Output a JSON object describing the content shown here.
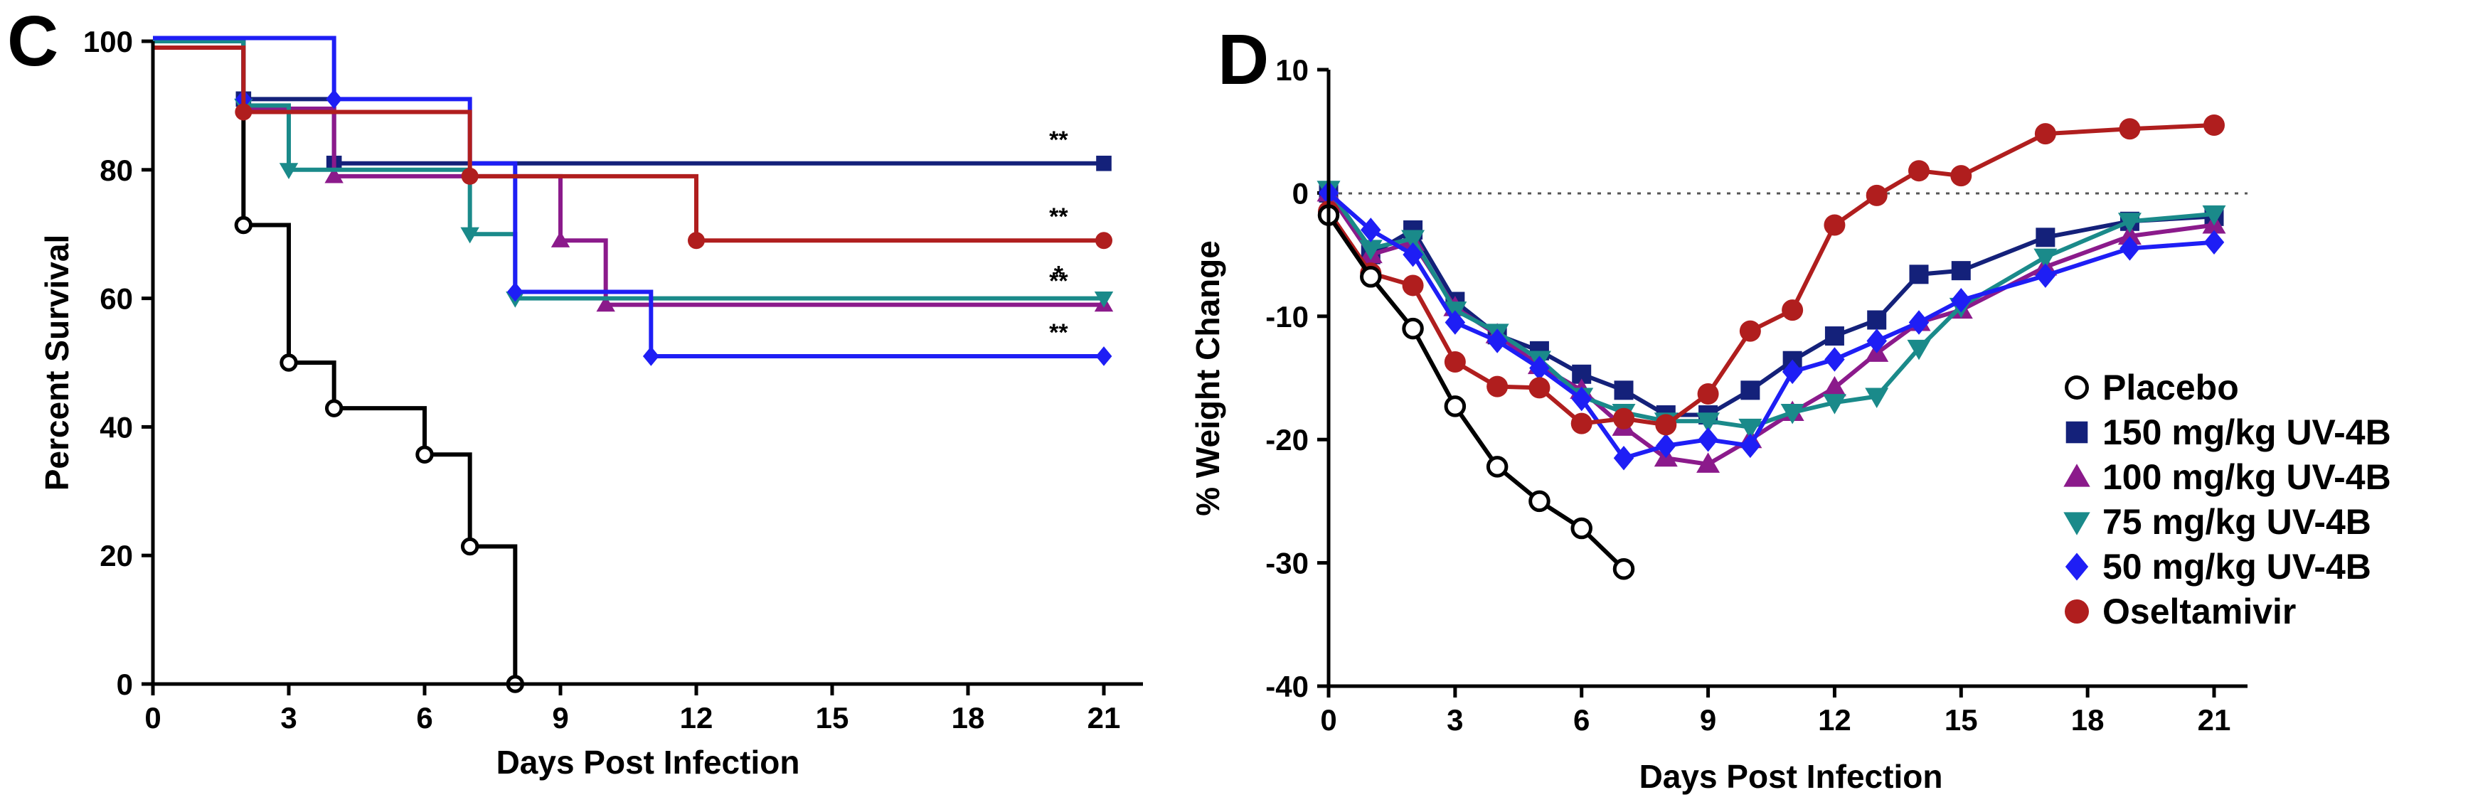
{
  "chart_data": [
    {
      "type": "line",
      "style": "step",
      "panel_label": "C",
      "xlabel": "Days Post Infection",
      "ylabel": "Percent Survival",
      "xlim": [
        0,
        22
      ],
      "ylim": [
        0,
        100
      ],
      "xticks": [
        0,
        3,
        6,
        9,
        12,
        15,
        18,
        21
      ],
      "yticks": [
        0,
        20,
        40,
        60,
        80,
        100
      ],
      "series": [
        {
          "name": "Placebo",
          "color": "#000000",
          "marker": "open-circle",
          "steps": [
            [
              0,
              100
            ],
            [
              2,
              71.4
            ],
            [
              3,
              50
            ],
            [
              4,
              42.9
            ],
            [
              6,
              35.7
            ],
            [
              7,
              21.4
            ],
            [
              8,
              0
            ]
          ],
          "points": [
            [
              2,
              71.4
            ],
            [
              3,
              50
            ],
            [
              4,
              42.9
            ],
            [
              6,
              35.7
            ],
            [
              7,
              21.4
            ],
            [
              8,
              0
            ]
          ]
        },
        {
          "name": "150 mg/kg UV-4B",
          "color": "#14217a",
          "marker": "square",
          "steps": [
            [
              0,
              100
            ],
            [
              2,
              91
            ],
            [
              4,
              81
            ],
            [
              21,
              81
            ]
          ],
          "points": [
            [
              2,
              91
            ],
            [
              4,
              81
            ],
            [
              21,
              81
            ]
          ],
          "significance": "**"
        },
        {
          "name": "100 mg/kg UV-4B",
          "color": "#8b1a8b",
          "marker": "triangle-up",
          "steps": [
            [
              0,
              100
            ],
            [
              2,
              89.5
            ],
            [
              4,
              79
            ],
            [
              9,
              69
            ],
            [
              10,
              59
            ],
            [
              21,
              59
            ]
          ],
          "points": [
            [
              4,
              79
            ],
            [
              9,
              69
            ],
            [
              10,
              59
            ],
            [
              21,
              59
            ]
          ],
          "significance": "**"
        },
        {
          "name": "75 mg/kg  UV-4B",
          "color": "#1a8a8a",
          "marker": "triangle-down",
          "steps": [
            [
              0,
              100
            ],
            [
              2,
              90
            ],
            [
              3,
              80
            ],
            [
              7,
              70
            ],
            [
              8,
              60
            ],
            [
              21,
              60
            ]
          ],
          "points": [
            [
              2,
              90
            ],
            [
              3,
              80
            ],
            [
              7,
              70
            ],
            [
              8,
              60
            ],
            [
              21,
              60
            ]
          ],
          "significance": "*"
        },
        {
          "name": "50 mg/kg  UV-4B",
          "color": "#1e1ef5",
          "marker": "diamond",
          "steps": [
            [
              0,
              100.5
            ],
            [
              4,
              91
            ],
            [
              7,
              81
            ],
            [
              8,
              61
            ],
            [
              11,
              51
            ],
            [
              21,
              51
            ]
          ],
          "points": [
            [
              2,
              91
            ],
            [
              4,
              91
            ],
            [
              8,
              61
            ],
            [
              11,
              51
            ],
            [
              21,
              51
            ]
          ],
          "significance": "**"
        },
        {
          "name": "Oseltamivir",
          "color": "#b01e1e",
          "marker": "circle",
          "steps": [
            [
              0,
              99
            ],
            [
              2,
              89
            ],
            [
              7,
              79
            ],
            [
              12,
              69
            ],
            [
              21,
              69
            ]
          ],
          "points": [
            [
              2,
              89
            ],
            [
              7,
              79
            ],
            [
              12,
              69
            ],
            [
              21,
              69
            ]
          ],
          "significance": "**"
        }
      ]
    },
    {
      "type": "line",
      "panel_label": "D",
      "xlabel": "Days Post Infection",
      "ylabel": "% Weight Change",
      "xlim": [
        0,
        22
      ],
      "ylim": [
        -40,
        10
      ],
      "xticks": [
        0,
        3,
        6,
        9,
        12,
        15,
        18,
        21
      ],
      "yticks": [
        -40,
        -30,
        -20,
        -10,
        0,
        10
      ],
      "reference_line": 0,
      "legend": "bottom-right",
      "series": [
        {
          "name": "Placebo",
          "color": "#000000",
          "marker": "open-circle",
          "x": [
            0,
            1,
            2,
            3,
            4,
            5,
            6,
            7
          ],
          "y": [
            -1.8,
            -6.8,
            -11,
            -17.3,
            -22.2,
            -25,
            -27.2,
            -30.5
          ]
        },
        {
          "name": "150 mg/kg UV-4B",
          "color": "#14217a",
          "marker": "square",
          "x": [
            0,
            1,
            2,
            3,
            4,
            5,
            6,
            7,
            8,
            9,
            10,
            11,
            12,
            13,
            14,
            15,
            17,
            19,
            21
          ],
          "y": [
            0,
            -5,
            -3,
            -8.8,
            -11.5,
            -12.8,
            -14.7,
            -16,
            -18,
            -18,
            -16,
            -13.6,
            -11.6,
            -10.3,
            -6.6,
            -6.3,
            -3.6,
            -2.3,
            -1.9
          ]
        },
        {
          "name": "100 mg/kg UV-4B",
          "color": "#8b1a8b",
          "marker": "triangle-up",
          "x": [
            0,
            1,
            2,
            3,
            4,
            5,
            6,
            7,
            8,
            9,
            10,
            11,
            12,
            13,
            14,
            15,
            17,
            19,
            21
          ],
          "y": [
            0,
            -5,
            -4,
            -9.3,
            -11.5,
            -14,
            -16,
            -19,
            -21.5,
            -22,
            -20,
            -17.8,
            -15.8,
            -13,
            -10.5,
            -9.5,
            -6,
            -3.5,
            -2.6
          ]
        },
        {
          "name": "75 mg/kg  UV-4B",
          "color": "#1a8a8a",
          "marker": "triangle-down",
          "x": [
            0,
            1,
            2,
            3,
            4,
            5,
            6,
            7,
            8,
            9,
            10,
            11,
            12,
            13,
            14,
            15,
            17,
            19,
            21
          ],
          "y": [
            0.3,
            -4.5,
            -3.7,
            -9.5,
            -11.3,
            -13.5,
            -16.5,
            -17.8,
            -18.5,
            -18.5,
            -19,
            -17.8,
            -17,
            -16.5,
            -12.6,
            -9.2,
            -5.2,
            -2.3,
            -1.7
          ]
        },
        {
          "name": "50 mg/kg  UV-4B",
          "color": "#1e1ef5",
          "marker": "diamond",
          "x": [
            0,
            1,
            2,
            3,
            4,
            5,
            6,
            7,
            8,
            9,
            10,
            11,
            12,
            13,
            14,
            15,
            17,
            19,
            21
          ],
          "y": [
            0,
            -3,
            -5,
            -10.5,
            -12,
            -14.2,
            -16.7,
            -21.5,
            -20.5,
            -20,
            -20.5,
            -14.5,
            -13.5,
            -12,
            -10.5,
            -8.7,
            -6.7,
            -4.5,
            -4
          ]
        },
        {
          "name": "Oseltamivir",
          "color": "#b01e1e",
          "marker": "circle",
          "x": [
            0,
            1,
            2,
            3,
            4,
            5,
            6,
            7,
            8,
            9,
            10,
            11,
            12,
            13,
            14,
            15,
            17,
            19,
            21
          ],
          "y": [
            -1.5,
            -6.5,
            -7.5,
            -13.7,
            -15.7,
            -15.8,
            -18.7,
            -18.3,
            -18.8,
            -16.3,
            -11.2,
            -9.5,
            -2.6,
            -0.2,
            1.8,
            1.4,
            4.8,
            5.2,
            5.5
          ]
        }
      ]
    }
  ]
}
